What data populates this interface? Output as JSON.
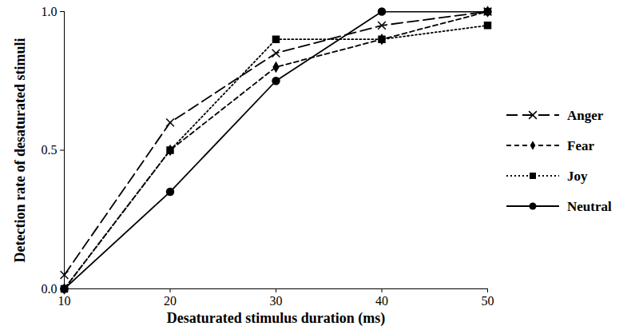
{
  "chart_data": {
    "type": "line",
    "x_label": "Desaturated stimulus duration (ms)",
    "y_label": "Detection rate of desaturated stimuli",
    "x": [
      10,
      20,
      30,
      40,
      50
    ],
    "xlim": [
      10,
      50
    ],
    "xticks": [
      10,
      20,
      30,
      40,
      50
    ],
    "ylim": [
      0,
      1
    ],
    "yticks": [
      {
        "value": 0,
        "label": "0.0"
      },
      {
        "value": 0.5,
        "label": "0.5"
      },
      {
        "value": 1,
        "label": "1.0"
      }
    ],
    "grid": false,
    "legend": "right",
    "series": [
      {
        "name": "Anger",
        "color": "#000000",
        "marker": "times",
        "line_style": "long_dash",
        "values": [
          0.05,
          0.6,
          0.85,
          0.95,
          1.0
        ]
      },
      {
        "name": "Fear",
        "color": "#000000",
        "marker": "diamond",
        "line_style": "dashed",
        "values": [
          0,
          0.5,
          0.8,
          0.9,
          1.0
        ]
      },
      {
        "name": "Joy",
        "color": "#000000",
        "marker": "square",
        "line_style": "dotted",
        "values": [
          0,
          0.5,
          0.9,
          0.9,
          0.95
        ]
      },
      {
        "name": "Neutral",
        "color": "#000000",
        "marker": "circle",
        "line_style": "solid",
        "values": [
          0,
          0.35,
          0.75,
          1.0,
          1.0
        ]
      }
    ]
  }
}
